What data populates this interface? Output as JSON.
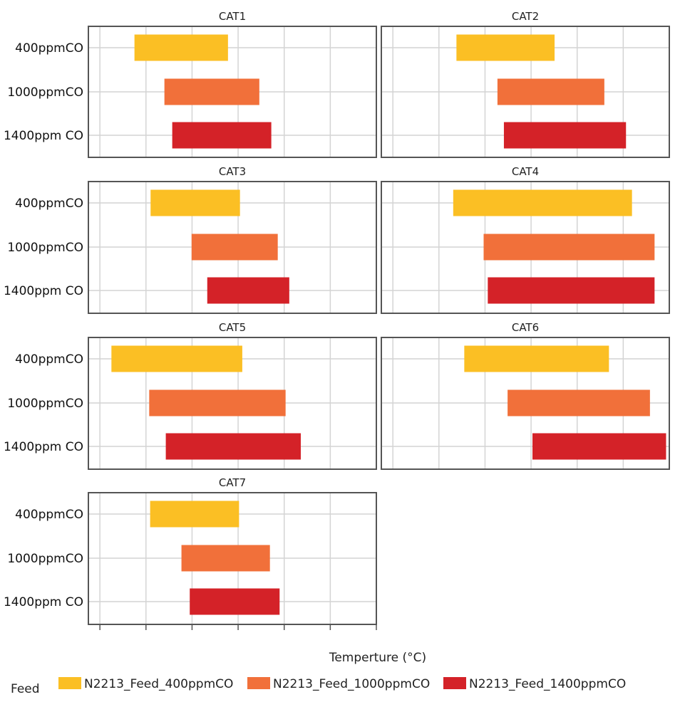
{
  "chart_data": {
    "type": "bar",
    "orientation": "horizontal-range",
    "xlabel": "Temperture (°C)",
    "ylabel": "",
    "xlim": [
      75,
      700
    ],
    "x_ticks": [
      100,
      200,
      300,
      400,
      500,
      600,
      700
    ],
    "x_tick_labels_shown": false,
    "grid": true,
    "categories": [
      "400ppmCO",
      "1000ppmCO",
      "1400ppm CO"
    ],
    "legend": {
      "title": "Feed",
      "placement": "bottom",
      "entries": [
        {
          "name": "N2213_Feed_400ppmCO",
          "color": "#FBBF24"
        },
        {
          "name": "N2213_Feed_1000ppmCO",
          "color": "#F1703A"
        },
        {
          "name": "N2213_Feed_1400ppmCO",
          "color": "#D42228"
        }
      ]
    },
    "panels": [
      {
        "title": "CAT1",
        "ranges": [
          [
            175,
            378
          ],
          [
            240,
            446
          ],
          [
            257,
            472
          ]
        ]
      },
      {
        "title": "CAT2",
        "ranges": [
          [
            238,
            451
          ],
          [
            327,
            559
          ],
          [
            341,
            606
          ]
        ]
      },
      {
        "title": "CAT3",
        "ranges": [
          [
            210,
            404
          ],
          [
            299,
            486
          ],
          [
            333,
            511
          ]
        ]
      },
      {
        "title": "CAT4",
        "ranges": [
          [
            231,
            619
          ],
          [
            297,
            668
          ],
          [
            306,
            668
          ]
        ]
      },
      {
        "title": "CAT5",
        "ranges": [
          [
            125,
            409
          ],
          [
            207,
            503
          ],
          [
            243,
            536
          ]
        ]
      },
      {
        "title": "CAT6",
        "ranges": [
          [
            255,
            569
          ],
          [
            349,
            658
          ],
          [
            403,
            693
          ]
        ]
      },
      {
        "title": "CAT7",
        "ranges": [
          [
            209,
            402
          ],
          [
            277,
            469
          ],
          [
            295,
            490
          ]
        ]
      }
    ]
  }
}
